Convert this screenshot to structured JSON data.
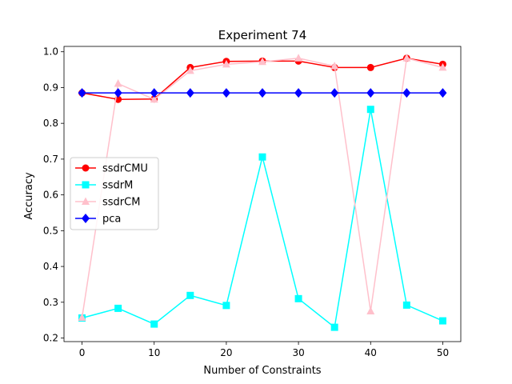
{
  "chart_data": {
    "type": "line",
    "title": "Experiment 74",
    "xlabel": "Number of Constraints",
    "ylabel": "Accuracy",
    "x": [
      0,
      5,
      10,
      15,
      20,
      25,
      30,
      35,
      40,
      45,
      50
    ],
    "xlim": [
      -2.5,
      52.5
    ],
    "ylim": [
      0.19,
      1.015
    ],
    "xticks": [
      0,
      10,
      20,
      30,
      40,
      50
    ],
    "yticks": [
      0.2,
      0.3,
      0.4,
      0.5,
      0.6,
      0.7,
      0.8,
      0.9,
      1.0
    ],
    "ytick_labels": [
      "0.2",
      "0.3",
      "0.4",
      "0.5",
      "0.6",
      "0.7",
      "0.8",
      "0.9",
      "1.0"
    ],
    "grid": false,
    "legend_position": "center-left",
    "series": [
      {
        "name": "ssdrCMU",
        "color": "#ff0000",
        "marker": "circle",
        "values": [
          0.885,
          0.867,
          0.868,
          0.956,
          0.973,
          0.974,
          0.974,
          0.956,
          0.956,
          0.982,
          0.965
        ]
      },
      {
        "name": "ssdrM",
        "color": "#00ffff",
        "marker": "square",
        "values": [
          0.256,
          0.283,
          0.239,
          0.319,
          0.291,
          0.706,
          0.31,
          0.23,
          0.839,
          0.292,
          0.248
        ]
      },
      {
        "name": "ssdrCM",
        "color": "#ffc0cb",
        "marker": "triangle",
        "values": [
          0.257,
          0.911,
          0.867,
          0.947,
          0.965,
          0.972,
          0.982,
          0.96,
          0.275,
          0.982,
          0.956
        ]
      },
      {
        "name": "pca",
        "color": "#0000ff",
        "marker": "diamond",
        "values": [
          0.885,
          0.885,
          0.885,
          0.885,
          0.885,
          0.885,
          0.885,
          0.885,
          0.885,
          0.885,
          0.885
        ]
      }
    ]
  }
}
